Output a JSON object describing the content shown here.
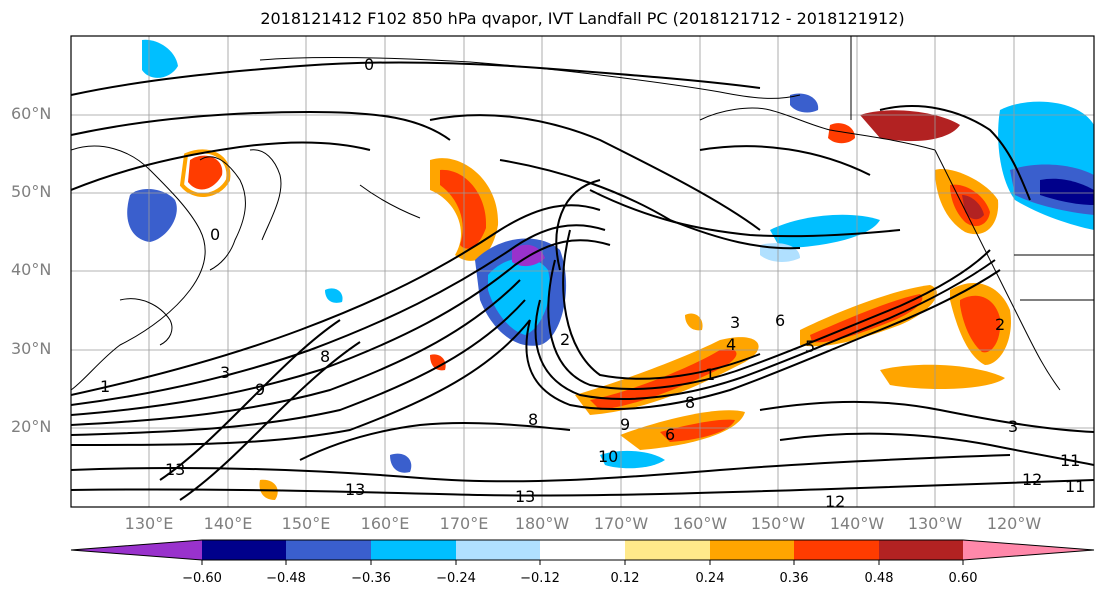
{
  "title": "2018121412 F102 850 hPa qvapor, IVT Landfall PC (2018121712 - 2018121912)",
  "lat_labels": [
    {
      "label": "60°N",
      "lat": 60
    },
    {
      "label": "50°N",
      "lat": 50
    },
    {
      "label": "40°N",
      "lat": 40
    },
    {
      "label": "30°N",
      "lat": 30
    },
    {
      "label": "20°N",
      "lat": 20
    }
  ],
  "lon_labels": [
    {
      "label": "130°E",
      "lon": 130
    },
    {
      "label": "140°E",
      "lon": 140
    },
    {
      "label": "150°E",
      "lon": 150
    },
    {
      "label": "160°E",
      "lon": 160
    },
    {
      "label": "170°E",
      "lon": 170
    },
    {
      "label": "180°W",
      "lon": 180
    },
    {
      "label": "170°W",
      "lon": 190
    },
    {
      "label": "160°W",
      "lon": 200
    },
    {
      "label": "150°W",
      "lon": 210
    },
    {
      "label": "140°W",
      "lon": 220
    },
    {
      "label": "130°W",
      "lon": 230
    },
    {
      "label": "120°W",
      "lon": 240
    }
  ],
  "colorbar": {
    "colors": [
      "#9932cc",
      "#00008b",
      "#3a5fcd",
      "#00bfff",
      "#b0e0ff",
      "#ffffff",
      "#ffe98a",
      "#ffa500",
      "#ff3c00",
      "#b22222",
      "#ff88aa"
    ],
    "tick_labels": [
      "−0.60",
      "−0.48",
      "−0.36",
      "−0.24",
      "−0.12",
      "0.12",
      "0.24",
      "0.36",
      "0.48",
      "0.60"
    ]
  },
  "contour_labels": [
    "0",
    "0",
    "1",
    "1",
    "2",
    "2",
    "3",
    "3",
    "3",
    "4",
    "5",
    "6",
    "6",
    "8",
    "8",
    "8",
    "9",
    "9",
    "10",
    "11",
    "11",
    "12",
    "12",
    "13",
    "13",
    "13"
  ]
}
